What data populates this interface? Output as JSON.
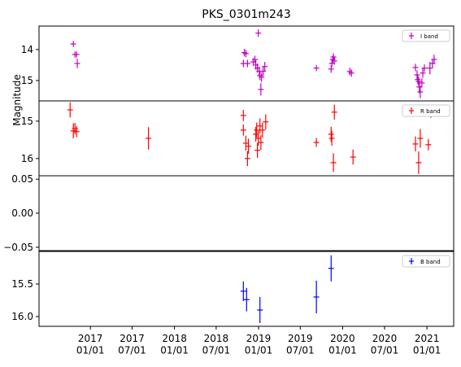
{
  "chart_data": [
    {
      "type": "errorbar",
      "title": "PKS_0301m243",
      "invert_y": true,
      "legend": "upper right",
      "xlim": [
        "2016-05-23",
        "2021-04-27"
      ],
      "ylim": [
        13.24,
        15.66
      ],
      "yticks": [
        14,
        15
      ],
      "series": [
        {
          "name": "I band",
          "color": "#c000c0",
          "x": [
            "2016-10-19",
            "2016-10-26",
            "2016-11-02",
            "2016-11-05",
            "2018-10-31",
            "2018-11-07",
            "2018-10-27",
            "2018-11-14",
            "2018-12-09",
            "2018-12-16",
            "2018-12-20",
            "2018-12-27",
            "2018-12-31",
            "2019-01-04",
            "2019-01-07",
            "2019-01-11",
            "2019-01-14",
            "2019-01-21",
            "2019-01-28",
            "2019-09-09",
            "2019-11-12",
            "2019-11-15",
            "2019-11-19",
            "2019-11-22",
            "2019-11-26",
            "2020-02-01",
            "2020-02-08",
            "2020-11-12",
            "2020-11-19",
            "2020-11-22",
            "2020-11-26",
            "2020-11-29",
            "2020-12-03",
            "2020-12-10",
            "2020-12-14",
            "2020-12-21",
            "2021-01-14",
            "2021-01-25",
            "2021-02-01"
          ],
          "values": [
            13.82,
            14.16,
            14.16,
            14.45,
            14.1,
            14.13,
            14.45,
            14.45,
            14.4,
            14.32,
            14.5,
            14.6,
            13.47,
            14.7,
            14.84,
            15.29,
            14.89,
            14.7,
            14.55,
            14.6,
            14.63,
            14.45,
            14.32,
            14.24,
            14.37,
            14.71,
            14.76,
            14.58,
            14.82,
            14.97,
            15.03,
            15.21,
            15.37,
            15.08,
            14.76,
            14.6,
            14.6,
            14.45,
            14.32
          ],
          "yerr": [
            0.1,
            0.1,
            0.1,
            0.15,
            0.12,
            0.12,
            0.12,
            0.12,
            0.12,
            0.12,
            0.15,
            0.15,
            0.12,
            0.15,
            0.15,
            0.2,
            0.15,
            0.15,
            0.15,
            0.1,
            0.12,
            0.12,
            0.12,
            0.12,
            0.12,
            0.12,
            0.12,
            0.12,
            0.15,
            0.15,
            0.15,
            0.2,
            0.2,
            0.15,
            0.15,
            0.12,
            0.2,
            0.15,
            0.15
          ]
        }
      ]
    },
    {
      "type": "errorbar",
      "ylabel": "Magnitude",
      "invert_y": true,
      "legend": "upper right",
      "xlim": [
        "2016-05-23",
        "2021-04-27"
      ],
      "ylim": [
        14.46,
        16.46
      ],
      "yticks": [
        15,
        16
      ],
      "series": [
        {
          "name": "R band",
          "color": "#ff0000",
          "x": [
            "2016-10-05",
            "2016-10-19",
            "2016-10-26",
            "2016-11-02",
            "2017-09-10",
            "2018-10-27",
            "2018-10-27",
            "2018-11-07",
            "2018-11-14",
            "2018-11-18",
            "2018-12-20",
            "2018-12-24",
            "2018-12-27",
            "2018-12-31",
            "2019-01-07",
            "2019-01-11",
            "2019-01-18",
            "2019-02-01",
            "2019-09-09",
            "2019-11-12",
            "2019-11-15",
            "2019-11-22",
            "2019-11-26",
            "2020-02-15",
            "2020-11-12",
            "2020-11-26",
            "2020-12-03",
            "2021-01-07",
            "2021-01-18"
          ],
          "values": [
            14.7,
            15.26,
            15.2,
            15.28,
            15.46,
            14.85,
            15.24,
            15.59,
            16.0,
            15.67,
            15.35,
            15.24,
            15.78,
            15.46,
            15.13,
            15.57,
            15.24,
            15.02,
            15.57,
            15.35,
            15.46,
            16.11,
            14.76,
            15.96,
            15.61,
            16.11,
            15.46,
            15.63,
            14.76
          ],
          "yerr": [
            0.2,
            0.2,
            0.15,
            0.15,
            0.3,
            0.15,
            0.15,
            0.2,
            0.2,
            0.2,
            0.2,
            0.2,
            0.2,
            0.2,
            0.2,
            0.2,
            0.2,
            0.2,
            0.12,
            0.2,
            0.2,
            0.25,
            0.2,
            0.2,
            0.2,
            0.3,
            0.25,
            0.15,
            0.15
          ]
        }
      ]
    },
    {
      "type": "errorbar",
      "xlim": [
        "2016-05-23",
        "2021-04-27"
      ],
      "ylim": [
        -0.055,
        0.055
      ],
      "yticks": [
        0.05,
        {
          "value": 0,
          "label": "0.00"
        },
        {
          "value": -0.05,
          "label": "−0.05"
        }
      ],
      "series": []
    },
    {
      "type": "errorbar",
      "invert_y": true,
      "legend": "upper right",
      "xlim": [
        "2016-05-23",
        "2021-04-27"
      ],
      "ylim": [
        15.0,
        16.15
      ],
      "yticks": [
        15.5,
        {
          "value": 16,
          "label": "16.0"
        }
      ],
      "xticks": [
        {
          "value": "2017-01-01",
          "label": "2017\n01/01"
        },
        {
          "value": "2017-07-01",
          "label": "2017\n07/01"
        },
        {
          "value": "2018-01-01",
          "label": "2018\n01/01"
        },
        {
          "value": "2018-07-01",
          "label": "2018\n07/01"
        },
        {
          "value": "2019-01-01",
          "label": "2019\n01/01"
        },
        {
          "value": "2019-07-01",
          "label": "2019\n07/01"
        },
        {
          "value": "2020-01-01",
          "label": "2020\n01/01"
        },
        {
          "value": "2020-07-01",
          "label": "2020\n07/01"
        },
        {
          "value": "2021-01-01",
          "label": "2021\n01/01"
        }
      ],
      "series": [
        {
          "name": "B band",
          "color": "#0000ff",
          "x": [
            "2018-10-27",
            "2018-11-10",
            "2019-01-07",
            "2019-09-09",
            "2019-11-12"
          ],
          "values": [
            15.61,
            15.74,
            15.9,
            15.7,
            15.26
          ],
          "yerr": [
            0.15,
            0.18,
            0.2,
            0.25,
            0.2
          ]
        }
      ]
    }
  ]
}
